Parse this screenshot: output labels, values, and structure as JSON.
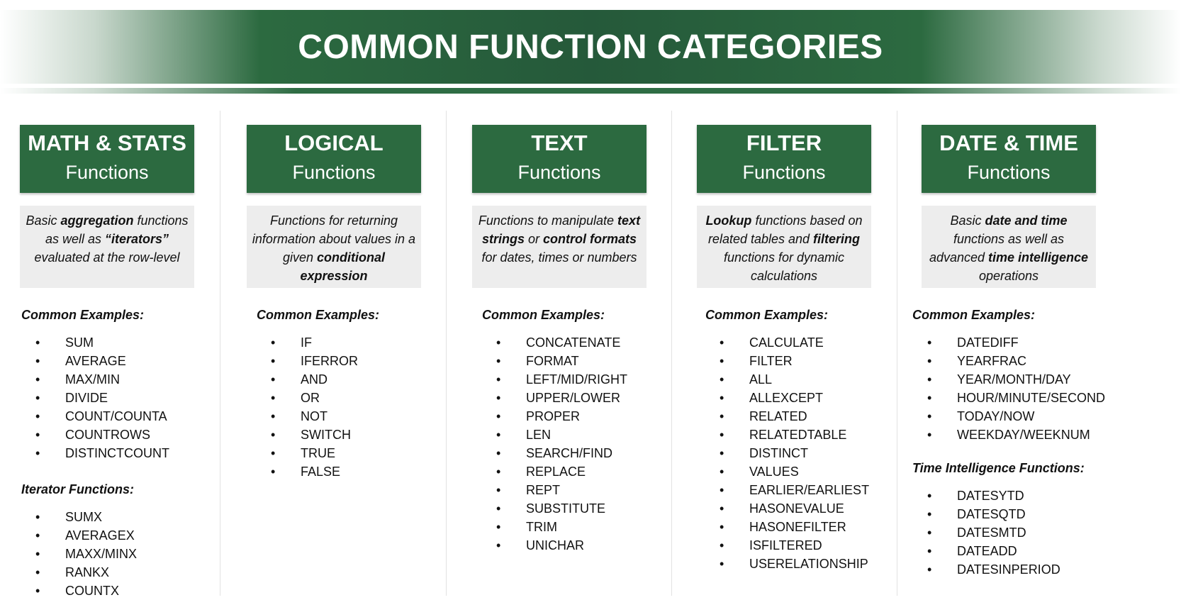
{
  "title": "COMMON FUNCTION CATEGORIES",
  "categories": [
    {
      "id": "math",
      "title": "MATH & STATS",
      "subtitle": "Functions",
      "description_parts": [
        {
          "text": "Basic ",
          "bold": false
        },
        {
          "text": "aggregation",
          "bold": true
        },
        {
          "text": " functions as well as ",
          "bold": false
        },
        {
          "text": "“iterators”",
          "bold": true
        },
        {
          "text": " evaluated at the row-level",
          "bold": false
        }
      ],
      "sections": [
        {
          "label": "Common Examples:",
          "items": [
            "SUM",
            "AVERAGE",
            "MAX/MIN",
            "DIVIDE",
            "COUNT/COUNTA",
            "COUNTROWS",
            "DISTINCTCOUNT"
          ]
        },
        {
          "label": "Iterator Functions:",
          "items": [
            "SUMX",
            "AVERAGEX",
            "MAXX/MINX",
            "RANKX",
            "COUNTX"
          ]
        }
      ]
    },
    {
      "id": "logical",
      "title": "LOGICAL",
      "subtitle": "Functions",
      "description_parts": [
        {
          "text": "Functions for returning information about values in a given ",
          "bold": false
        },
        {
          "text": "conditional expression",
          "bold": true
        }
      ],
      "sections": [
        {
          "label": "Common Examples:",
          "items": [
            "IF",
            "IFERROR",
            "AND",
            "OR",
            "NOT",
            "SWITCH",
            "TRUE",
            "FALSE"
          ]
        }
      ]
    },
    {
      "id": "text",
      "title": "TEXT",
      "subtitle": "Functions",
      "description_parts": [
        {
          "text": "Functions to manipulate ",
          "bold": false
        },
        {
          "text": "text strings",
          "bold": true
        },
        {
          "text": " or ",
          "bold": false
        },
        {
          "text": "control formats",
          "bold": true
        },
        {
          "text": " for dates, times or numbers",
          "bold": false
        }
      ],
      "sections": [
        {
          "label": "Common Examples:",
          "items": [
            "CONCATENATE",
            "FORMAT",
            "LEFT/MID/RIGHT",
            "UPPER/LOWER",
            "PROPER",
            "LEN",
            "SEARCH/FIND",
            "REPLACE",
            "REPT",
            "SUBSTITUTE",
            "TRIM",
            "UNICHAR"
          ]
        }
      ]
    },
    {
      "id": "filter",
      "title": "FILTER",
      "subtitle": "Functions",
      "description_parts": [
        {
          "text": "Lookup",
          "bold": true
        },
        {
          "text": " functions based on related tables and ",
          "bold": false
        },
        {
          "text": "filtering",
          "bold": true
        },
        {
          "text": " functions for dynamic calculations",
          "bold": false
        }
      ],
      "sections": [
        {
          "label": "Common Examples:",
          "items": [
            "CALCULATE",
            "FILTER",
            "ALL",
            "ALLEXCEPT",
            "RELATED",
            "RELATEDTABLE",
            "DISTINCT",
            "VALUES",
            "EARLIER/EARLIEST",
            "HASONEVALUE",
            "HASONEFILTER",
            "ISFILTERED",
            "USERELATIONSHIP"
          ]
        }
      ]
    },
    {
      "id": "datetime",
      "title": "DATE & TIME",
      "subtitle": "Functions",
      "description_parts": [
        {
          "text": "Basic ",
          "bold": false
        },
        {
          "text": "date and time",
          "bold": true
        },
        {
          "text": " functions as well as advanced ",
          "bold": false
        },
        {
          "text": "time intelligence",
          "bold": true
        },
        {
          "text": " operations",
          "bold": false
        }
      ],
      "sections": [
        {
          "label": "Common Examples:",
          "items": [
            "DATEDIFF",
            "YEARFRAC",
            "YEAR/MONTH/DAY",
            "HOUR/MINUTE/SECOND",
            "TODAY/NOW",
            "WEEKDAY/WEEKNUM"
          ]
        },
        {
          "label": "Time Intelligence Functions:",
          "items": [
            "DATESYTD",
            "DATESQTD",
            "DATESMTD",
            "DATEADD",
            "DATESINPERIOD"
          ]
        }
      ]
    }
  ]
}
